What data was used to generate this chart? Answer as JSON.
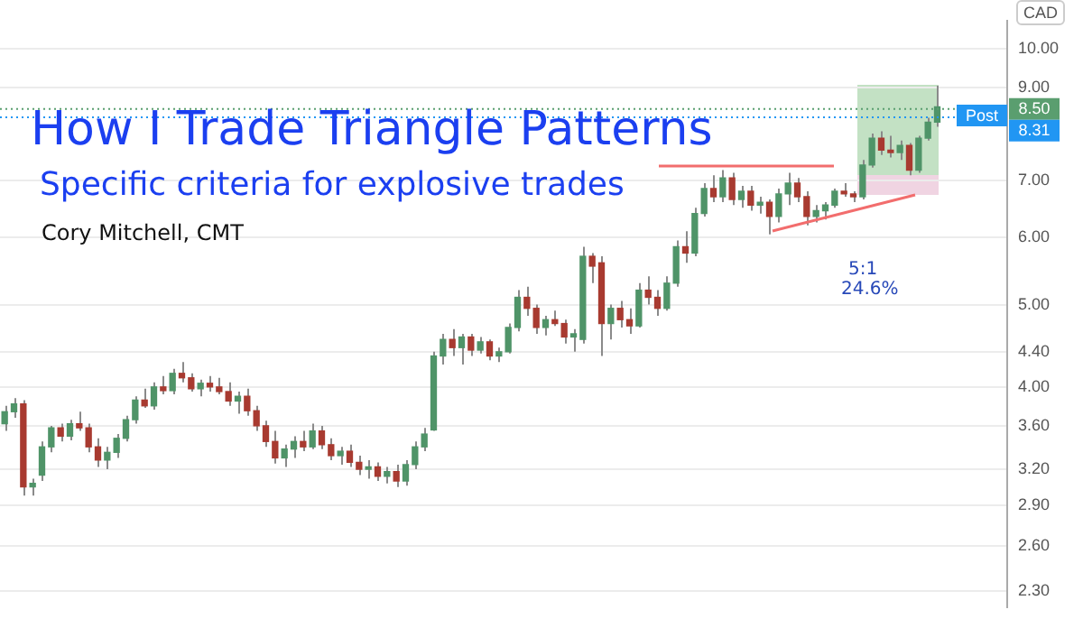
{
  "chart_data": {
    "type": "candlestick",
    "title": "How I Trade Triangle Patterns",
    "subtitle": "Specific criteria for explosive trades",
    "ylabel": "CAD",
    "annotations": [
      "Cory Mitchell, CMT",
      "Post",
      "5:1",
      "24.6%"
    ],
    "log": "y",
    "grid": "y",
    "tick_labels": "y",
    "legend": false,
    "ylim": [
      2.2,
      10.8
    ],
    "yticks": [
      {
        "value": 10,
        "label": "10.00"
      },
      {
        "value": 9,
        "label": "9.00"
      },
      {
        "value": 7,
        "label": "7.00"
      },
      {
        "value": 6,
        "label": "6.00"
      },
      {
        "value": 5,
        "label": "5.00"
      },
      {
        "value": 4.4,
        "label": "4.40"
      },
      {
        "value": 4,
        "label": "4.00"
      },
      {
        "value": 3.6,
        "label": "3.60"
      },
      {
        "value": 3.2,
        "label": "3.20"
      },
      {
        "value": 2.9,
        "label": "2.90"
      },
      {
        "value": 2.6,
        "label": "2.60"
      },
      {
        "value": 2.3,
        "label": "2.30"
      }
    ],
    "ref_lines": [
      {
        "axis": "y",
        "value": 8.5,
        "label": "8.50",
        "color": "#5a9e6f",
        "line_style": "dotted"
      },
      {
        "axis": "y",
        "value": 8.31,
        "label": "8.31",
        "color": "#2196f3",
        "line_style": "dotted"
      }
    ],
    "categories": [
      null,
      null,
      null,
      null,
      null,
      null,
      null,
      null,
      null,
      null,
      null,
      null,
      null,
      null,
      null,
      null,
      null,
      null,
      null,
      null,
      null,
      null,
      null,
      null,
      null,
      null,
      null,
      null,
      null,
      null,
      null,
      null,
      null,
      null,
      null,
      null,
      null,
      null,
      null,
      null,
      null,
      null,
      null,
      null,
      null,
      null,
      null,
      null,
      null,
      null,
      null,
      null,
      null,
      null,
      null,
      null,
      null,
      null,
      null,
      null,
      null,
      null,
      null,
      null,
      null,
      null,
      null,
      null,
      null,
      null,
      null,
      null,
      null,
      null,
      null,
      null,
      null,
      null,
      null,
      null,
      null,
      null,
      null,
      null,
      null,
      null,
      null,
      null,
      null,
      null,
      null,
      null,
      null,
      null,
      null,
      null,
      null,
      null,
      null,
      null,
      null
    ],
    "ohlc": [
      [
        3.62,
        3.8,
        3.55,
        3.74
      ],
      [
        3.74,
        3.88,
        3.68,
        3.82
      ],
      [
        3.82,
        3.86,
        2.98,
        3.05
      ],
      [
        3.05,
        3.12,
        2.98,
        3.08
      ],
      [
        3.15,
        3.45,
        3.1,
        3.4
      ],
      [
        3.4,
        3.6,
        3.35,
        3.58
      ],
      [
        3.58,
        3.62,
        3.45,
        3.5
      ],
      [
        3.5,
        3.66,
        3.46,
        3.62
      ],
      [
        3.62,
        3.74,
        3.55,
        3.58
      ],
      [
        3.58,
        3.62,
        3.35,
        3.4
      ],
      [
        3.4,
        3.48,
        3.22,
        3.28
      ],
      [
        3.28,
        3.4,
        3.2,
        3.35
      ],
      [
        3.35,
        3.52,
        3.3,
        3.48
      ],
      [
        3.48,
        3.7,
        3.45,
        3.66
      ],
      [
        3.66,
        3.9,
        3.62,
        3.86
      ],
      [
        3.86,
        3.98,
        3.78,
        3.8
      ],
      [
        3.8,
        4.05,
        3.76,
        4.0
      ],
      [
        4.0,
        4.12,
        3.92,
        3.96
      ],
      [
        3.96,
        4.2,
        3.92,
        4.15
      ],
      [
        4.15,
        4.28,
        4.05,
        4.1
      ],
      [
        4.1,
        4.15,
        3.95,
        3.98
      ],
      [
        3.98,
        4.08,
        3.9,
        4.04
      ],
      [
        4.04,
        4.12,
        3.95,
        4.0
      ],
      [
        4.0,
        4.1,
        3.92,
        3.95
      ],
      [
        3.95,
        4.05,
        3.8,
        3.85
      ],
      [
        3.85,
        3.95,
        3.72,
        3.9
      ],
      [
        3.9,
        3.98,
        3.7,
        3.75
      ],
      [
        3.75,
        3.8,
        3.55,
        3.6
      ],
      [
        3.6,
        3.65,
        3.4,
        3.45
      ],
      [
        3.45,
        3.55,
        3.25,
        3.3
      ],
      [
        3.3,
        3.42,
        3.22,
        3.38
      ],
      [
        3.38,
        3.5,
        3.3,
        3.45
      ],
      [
        3.45,
        3.55,
        3.36,
        3.4
      ],
      [
        3.4,
        3.62,
        3.38,
        3.55
      ],
      [
        3.55,
        3.6,
        3.38,
        3.42
      ],
      [
        3.42,
        3.48,
        3.28,
        3.32
      ],
      [
        3.32,
        3.4,
        3.24,
        3.36
      ],
      [
        3.36,
        3.42,
        3.22,
        3.26
      ],
      [
        3.26,
        3.32,
        3.15,
        3.2
      ],
      [
        3.2,
        3.28,
        3.12,
        3.22
      ],
      [
        3.22,
        3.26,
        3.1,
        3.14
      ],
      [
        3.14,
        3.22,
        3.08,
        3.18
      ],
      [
        3.18,
        3.24,
        3.05,
        3.1
      ],
      [
        3.1,
        3.28,
        3.06,
        3.24
      ],
      [
        3.24,
        3.45,
        3.2,
        3.4
      ],
      [
        3.4,
        3.58,
        3.36,
        3.52
      ],
      [
        3.56,
        4.4,
        3.55,
        4.35
      ],
      [
        4.35,
        4.62,
        4.25,
        4.55
      ],
      [
        4.55,
        4.68,
        4.35,
        4.45
      ],
      [
        4.45,
        4.62,
        4.25,
        4.58
      ],
      [
        4.58,
        4.62,
        4.35,
        4.42
      ],
      [
        4.42,
        4.58,
        4.38,
        4.52
      ],
      [
        4.52,
        4.55,
        4.3,
        4.35
      ],
      [
        4.35,
        4.45,
        4.28,
        4.4
      ],
      [
        4.4,
        4.75,
        4.38,
        4.7
      ],
      [
        4.7,
        5.2,
        4.65,
        5.1
      ],
      [
        5.1,
        5.25,
        4.85,
        4.95
      ],
      [
        4.95,
        5.0,
        4.62,
        4.7
      ],
      [
        4.7,
        4.85,
        4.6,
        4.8
      ],
      [
        4.8,
        4.92,
        4.72,
        4.75
      ],
      [
        4.75,
        4.8,
        4.5,
        4.58
      ],
      [
        4.58,
        4.68,
        4.4,
        4.62
      ],
      [
        4.55,
        5.85,
        4.5,
        5.7
      ],
      [
        5.7,
        5.75,
        5.3,
        5.55
      ],
      [
        5.6,
        5.7,
        4.35,
        4.75
      ],
      [
        4.75,
        5.0,
        4.55,
        4.95
      ],
      [
        4.95,
        5.05,
        4.7,
        4.8
      ],
      [
        4.8,
        4.95,
        4.62,
        4.72
      ],
      [
        4.72,
        5.3,
        4.7,
        5.2
      ],
      [
        5.2,
        5.4,
        5.0,
        5.1
      ],
      [
        5.1,
        5.2,
        4.85,
        4.95
      ],
      [
        4.95,
        5.4,
        4.92,
        5.3
      ],
      [
        5.3,
        5.95,
        5.25,
        5.85
      ],
      [
        5.85,
        6.1,
        5.6,
        5.75
      ],
      [
        5.75,
        6.5,
        5.7,
        6.4
      ],
      [
        6.4,
        6.95,
        6.35,
        6.85
      ],
      [
        6.85,
        7.1,
        6.6,
        6.7
      ],
      [
        6.7,
        7.2,
        6.6,
        7.05
      ],
      [
        7.05,
        7.15,
        6.55,
        6.65
      ],
      [
        6.65,
        6.9,
        6.5,
        6.8
      ],
      [
        6.8,
        6.9,
        6.45,
        6.55
      ],
      [
        6.55,
        6.7,
        6.4,
        6.6
      ],
      [
        6.6,
        6.65,
        6.05,
        6.35
      ],
      [
        6.35,
        6.85,
        6.25,
        6.75
      ],
      [
        6.75,
        7.15,
        6.55,
        6.95
      ],
      [
        6.95,
        7.05,
        6.6,
        6.7
      ],
      [
        6.7,
        6.8,
        6.2,
        6.35
      ],
      [
        6.35,
        6.55,
        6.25,
        6.45
      ],
      [
        6.45,
        6.6,
        6.3,
        6.55
      ],
      [
        6.55,
        6.85,
        6.5,
        6.8
      ],
      [
        6.8,
        6.95,
        6.7,
        6.75
      ],
      [
        6.75,
        6.8,
        6.6,
        6.7
      ],
      [
        6.7,
        7.4,
        6.65,
        7.3
      ],
      [
        7.3,
        7.95,
        7.25,
        7.85
      ],
      [
        7.85,
        8.0,
        7.5,
        7.6
      ],
      [
        7.6,
        7.9,
        7.45,
        7.55
      ],
      [
        7.55,
        7.8,
        7.4,
        7.7
      ],
      [
        7.7,
        7.75,
        7.1,
        7.2
      ],
      [
        7.2,
        7.9,
        7.15,
        7.85
      ],
      [
        7.85,
        8.3,
        7.8,
        8.2
      ],
      [
        8.2,
        9.05,
        8.1,
        8.55
      ]
    ],
    "colors": [
      "#4f9468",
      "#4f9468",
      "#a83a30",
      "#4f9468",
      "#4f9468",
      "#4f9468",
      "#a83a30",
      "#4f9468",
      "#a83a30",
      "#a83a30",
      "#a83a30",
      "#4f9468",
      "#4f9468",
      "#4f9468",
      "#4f9468",
      "#a83a30",
      "#4f9468",
      "#a83a30",
      "#4f9468",
      "#a83a30",
      "#a83a30",
      "#4f9468",
      "#a83a30",
      "#a83a30",
      "#a83a30",
      "#4f9468",
      "#a83a30",
      "#a83a30",
      "#a83a30",
      "#a83a30",
      "#4f9468",
      "#4f9468",
      "#a83a30",
      "#4f9468",
      "#a83a30",
      "#a83a30",
      "#4f9468",
      "#a83a30",
      "#a83a30",
      "#4f9468",
      "#a83a30",
      "#4f9468",
      "#a83a30",
      "#4f9468",
      "#4f9468",
      "#4f9468",
      "#4f9468",
      "#4f9468",
      "#a83a30",
      "#4f9468",
      "#a83a30",
      "#4f9468",
      "#a83a30",
      "#4f9468",
      "#4f9468",
      "#4f9468",
      "#a83a30",
      "#a83a30",
      "#4f9468",
      "#a83a30",
      "#a83a30",
      "#4f9468",
      "#4f9468",
      "#a83a30",
      "#a83a30",
      "#4f9468",
      "#a83a30",
      "#a83a30",
      "#4f9468",
      "#a83a30",
      "#a83a30",
      "#4f9468",
      "#4f9468",
      "#a83a30",
      "#4f9468",
      "#4f9468",
      "#a83a30",
      "#4f9468",
      "#a83a30",
      "#4f9468",
      "#a83a30",
      "#4f9468",
      "#a83a30",
      "#4f9468",
      "#4f9468",
      "#a83a30",
      "#a83a30",
      "#4f9468",
      "#4f9468",
      "#4f9468",
      "#a83a30",
      "#a83a30",
      "#4f9468",
      "#4f9468",
      "#a83a30",
      "#a83a30",
      "#4f9468",
      "#a83a30",
      "#4f9468",
      "#4f9468",
      "#4f9468"
    ]
  }
}
